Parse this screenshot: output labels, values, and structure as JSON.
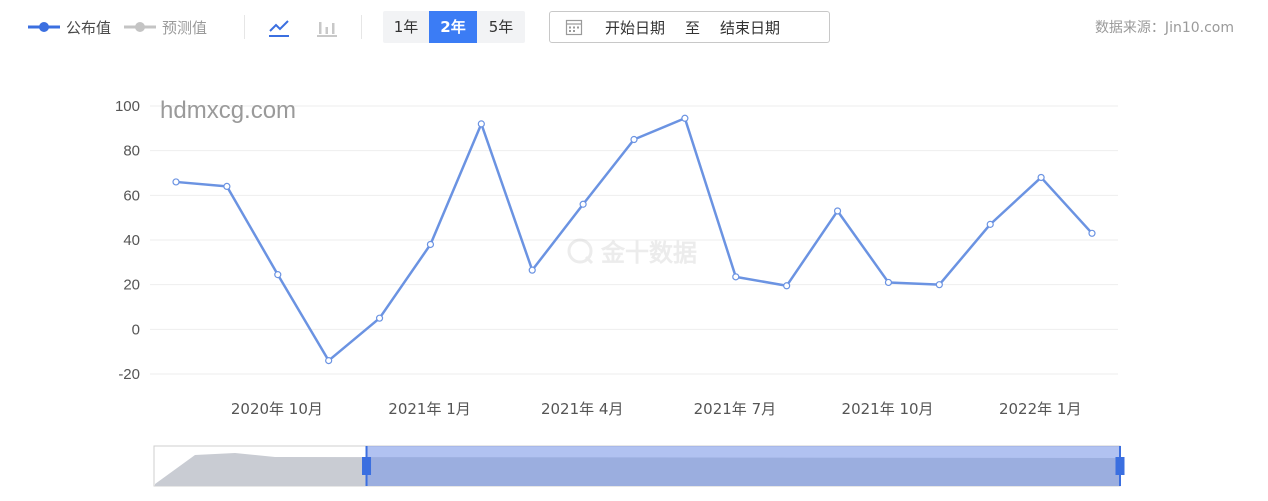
{
  "toolbar": {
    "legend_published": "公布值",
    "legend_forecast": "预测值",
    "range_1y": "1年",
    "range_2y": "2年",
    "range_5y": "5年",
    "start_date_placeholder": "开始日期",
    "date_separator": "至",
    "end_date_placeholder": "结束日期",
    "source": "数据来源：Jin10.com"
  },
  "watermark": {
    "site": "hdmxcg.com",
    "logo_text": "金十数据"
  },
  "colors": {
    "series": "#6b93e2",
    "active_button": "#3b7cf5",
    "grid": "#eeeeee",
    "axis_text": "#555555"
  },
  "chart_data": {
    "type": "line",
    "title": "",
    "xlabel": "",
    "ylabel": "",
    "ylim": [
      -20,
      100
    ],
    "yticks": [
      100,
      80,
      60,
      40,
      20,
      0,
      -20
    ],
    "x_tick_labels": [
      "2020年 10月",
      "2021年 1月",
      "2021年 4月",
      "2021年 7月",
      "2021年 10月",
      "2022年 1月"
    ],
    "x_tick_positions": [
      1,
      4,
      7,
      10,
      13,
      16
    ],
    "x_count": 19,
    "grid": true,
    "legend": "top-left",
    "series": [
      {
        "name": "公布值",
        "values": [
          66,
          64,
          24.5,
          -14,
          5,
          38,
          92,
          26.5,
          56,
          85,
          94.5,
          23.5,
          19.5,
          53,
          21,
          20,
          47,
          68,
          43
        ]
      }
    ],
    "zoom_window": [
      0.22,
      1.0
    ]
  }
}
